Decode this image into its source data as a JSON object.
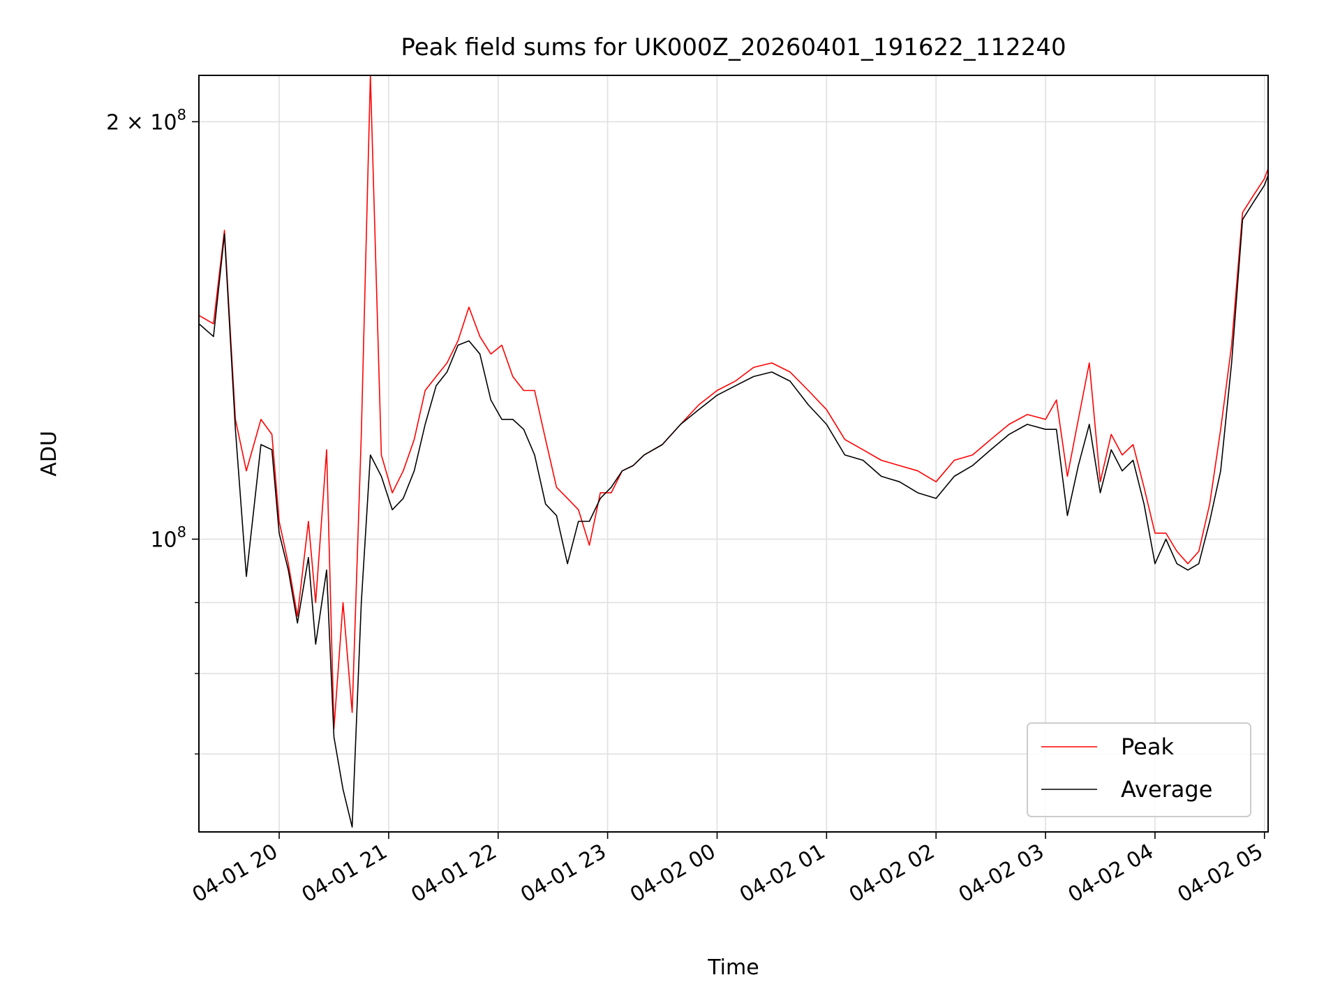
{
  "chart_data": {
    "type": "line",
    "title": "Peak field sums for UK000Z_20260401_191622_112240",
    "xlabel": "Time",
    "ylabel": "ADU",
    "yscale": "log",
    "ylim": [
      61500000,
      216000000
    ],
    "xlim": [
      "04-01 19:16",
      "04-02 05:02"
    ],
    "grid": true,
    "legend_position": "lower right",
    "x_ticks": [
      "04-01 20",
      "04-01 21",
      "04-01 22",
      "04-01 23",
      "04-02 00",
      "04-02 01",
      "04-02 02",
      "04-02 03",
      "04-02 04",
      "04-02 05"
    ],
    "y_tick_labels": [
      {
        "value": 200000000,
        "base": "2 × 10",
        "exp": "8"
      },
      {
        "value": 100000000,
        "base": "10",
        "exp": "8"
      }
    ],
    "y_minor_ticks": [
      70000000,
      80000000,
      90000000
    ],
    "series": [
      {
        "name": "Peak",
        "color": "#ff0000",
        "x": [
          "04-01 19:16",
          "04-01 19:24",
          "04-01 19:30",
          "04-01 19:36",
          "04-01 19:42",
          "04-01 19:50",
          "04-01 19:56",
          "04-01 20:00",
          "04-01 20:05",
          "04-01 20:10",
          "04-01 20:16",
          "04-01 20:20",
          "04-01 20:26",
          "04-01 20:30",
          "04-01 20:35",
          "04-01 20:40",
          "04-01 20:45",
          "04-01 20:50",
          "04-01 20:56",
          "04-01 21:02",
          "04-01 21:08",
          "04-01 21:14",
          "04-01 21:20",
          "04-01 21:26",
          "04-01 21:32",
          "04-01 21:38",
          "04-01 21:44",
          "04-01 21:50",
          "04-01 21:56",
          "04-01 22:02",
          "04-01 22:08",
          "04-01 22:14",
          "04-01 22:20",
          "04-01 22:26",
          "04-01 22:32",
          "04-01 22:38",
          "04-01 22:44",
          "04-01 22:50",
          "04-01 22:56",
          "04-01 23:02",
          "04-01 23:08",
          "04-01 23:14",
          "04-01 23:20",
          "04-01 23:30",
          "04-01 23:40",
          "04-01 23:50",
          "04-02 00:00",
          "04-02 00:10",
          "04-02 00:20",
          "04-02 00:30",
          "04-02 00:40",
          "04-02 00:50",
          "04-02 01:00",
          "04-02 01:10",
          "04-02 01:20",
          "04-02 01:30",
          "04-02 01:40",
          "04-02 01:50",
          "04-02 02:00",
          "04-02 02:10",
          "04-02 02:20",
          "04-02 02:30",
          "04-02 02:40",
          "04-02 02:50",
          "04-02 03:00",
          "04-02 03:06",
          "04-02 03:12",
          "04-02 03:18",
          "04-02 03:24",
          "04-02 03:30",
          "04-02 03:36",
          "04-02 03:42",
          "04-02 03:48",
          "04-02 03:54",
          "04-02 04:00",
          "04-02 04:06",
          "04-02 04:12",
          "04-02 04:18",
          "04-02 04:24",
          "04-02 04:30",
          "04-02 04:36",
          "04-02 04:42",
          "04-02 04:48",
          "04-02 04:54",
          "04-02 05:00",
          "04-02 05:02"
        ],
        "values": [
          145000000,
          143000000,
          167000000,
          122000000,
          112000000,
          122000000,
          119000000,
          103000000,
          96000000,
          88000000,
          103000000,
          90000000,
          116000000,
          73000000,
          90000000,
          75000000,
          119000000,
          216000000,
          115000000,
          108000000,
          112000000,
          118000000,
          128000000,
          131000000,
          134000000,
          139000000,
          147000000,
          140000000,
          136000000,
          138000000,
          131000000,
          128000000,
          128000000,
          118000000,
          109000000,
          107000000,
          105000000,
          99000000,
          108000000,
          108000000,
          112000000,
          113000000,
          115000000,
          117000000,
          121000000,
          125000000,
          128000000,
          130000000,
          133000000,
          134000000,
          132000000,
          128000000,
          124000000,
          118000000,
          116000000,
          114000000,
          113000000,
          112000000,
          110000000,
          114000000,
          115000000,
          118000000,
          121000000,
          123000000,
          122000000,
          126000000,
          111000000,
          122000000,
          134000000,
          110000000,
          119000000,
          115000000,
          117000000,
          109000000,
          101000000,
          101000000,
          98000000,
          96000000,
          98000000,
          106000000,
          120000000,
          138000000,
          172000000,
          177000000,
          182000000,
          185000000
        ]
      },
      {
        "name": "Average",
        "color": "#000000",
        "x": [
          "04-01 19:16",
          "04-01 19:24",
          "04-01 19:30",
          "04-01 19:36",
          "04-01 19:42",
          "04-01 19:50",
          "04-01 19:56",
          "04-01 20:00",
          "04-01 20:05",
          "04-01 20:10",
          "04-01 20:16",
          "04-01 20:20",
          "04-01 20:26",
          "04-01 20:30",
          "04-01 20:35",
          "04-01 20:40",
          "04-01 20:45",
          "04-01 20:50",
          "04-01 20:56",
          "04-01 21:02",
          "04-01 21:08",
          "04-01 21:14",
          "04-01 21:20",
          "04-01 21:26",
          "04-01 21:32",
          "04-01 21:38",
          "04-01 21:44",
          "04-01 21:50",
          "04-01 21:56",
          "04-01 22:02",
          "04-01 22:08",
          "04-01 22:14",
          "04-01 22:20",
          "04-01 22:26",
          "04-01 22:32",
          "04-01 22:38",
          "04-01 22:44",
          "04-01 22:50",
          "04-01 22:56",
          "04-01 23:02",
          "04-01 23:08",
          "04-01 23:14",
          "04-01 23:20",
          "04-01 23:30",
          "04-01 23:40",
          "04-01 23:50",
          "04-02 00:00",
          "04-02 00:10",
          "04-02 00:20",
          "04-02 00:30",
          "04-02 00:40",
          "04-02 00:50",
          "04-02 01:00",
          "04-02 01:10",
          "04-02 01:20",
          "04-02 01:30",
          "04-02 01:40",
          "04-02 01:50",
          "04-02 02:00",
          "04-02 02:10",
          "04-02 02:20",
          "04-02 02:30",
          "04-02 02:40",
          "04-02 02:50",
          "04-02 03:00",
          "04-02 03:06",
          "04-02 03:12",
          "04-02 03:18",
          "04-02 03:24",
          "04-02 03:30",
          "04-02 03:36",
          "04-02 03:42",
          "04-02 03:48",
          "04-02 03:54",
          "04-02 04:00",
          "04-02 04:06",
          "04-02 04:12",
          "04-02 04:18",
          "04-02 04:24",
          "04-02 04:30",
          "04-02 04:36",
          "04-02 04:42",
          "04-02 04:48",
          "04-02 04:54",
          "04-02 05:00",
          "04-02 05:02"
        ],
        "values": [
          143000000,
          140000000,
          166000000,
          120000000,
          94000000,
          117000000,
          116000000,
          101000000,
          95000000,
          87000000,
          97000000,
          84000000,
          95000000,
          72000000,
          66000000,
          62000000,
          90000000,
          115000000,
          111000000,
          105000000,
          107000000,
          112000000,
          121000000,
          129000000,
          132000000,
          138000000,
          139000000,
          136000000,
          126000000,
          122000000,
          122000000,
          120000000,
          115000000,
          106000000,
          104000000,
          96000000,
          103000000,
          103000000,
          107000000,
          109000000,
          112000000,
          113000000,
          115000000,
          117000000,
          121000000,
          124000000,
          127000000,
          129000000,
          131000000,
          132000000,
          130000000,
          125000000,
          121000000,
          115000000,
          114000000,
          111000000,
          110000000,
          108000000,
          107000000,
          111000000,
          113000000,
          116000000,
          119000000,
          121000000,
          120000000,
          120000000,
          104000000,
          113000000,
          121000000,
          108000000,
          116000000,
          112000000,
          114000000,
          106000000,
          96000000,
          100000000,
          96000000,
          95000000,
          96000000,
          103000000,
          112000000,
          134000000,
          170000000,
          175000000,
          180000000,
          183000000
        ]
      }
    ]
  }
}
